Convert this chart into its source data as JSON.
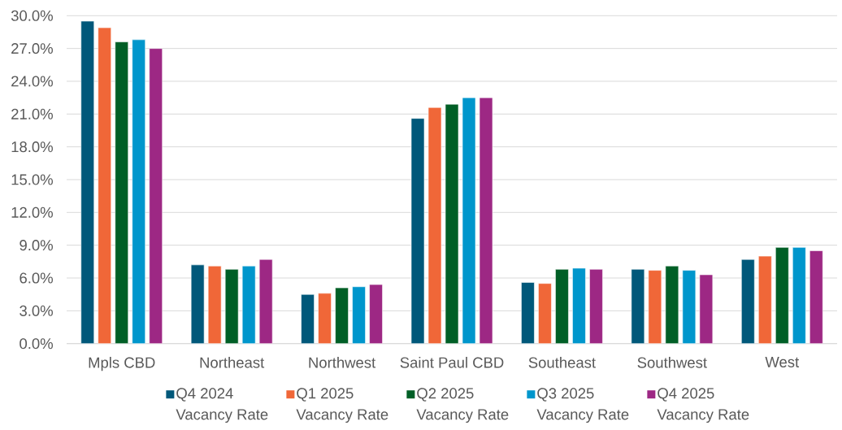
{
  "chart_data": {
    "type": "bar",
    "categories": [
      "Mpls CBD",
      "Northeast",
      "Northwest",
      "Saint Paul CBD",
      "Southeast",
      "Southwest",
      "West"
    ],
    "series": [
      {
        "name": "Q4 2024 Vacancy Rate",
        "color": "#01587A",
        "values": [
          29.5,
          7.2,
          4.5,
          20.6,
          5.6,
          6.8,
          7.7
        ]
      },
      {
        "name": "Q1 2025 Vacancy Rate",
        "color": "#F06738",
        "values": [
          28.9,
          7.1,
          4.6,
          21.6,
          5.5,
          6.7,
          8.0
        ]
      },
      {
        "name": "Q2 2025 Vacancy Rate",
        "color": "#005F26",
        "values": [
          27.6,
          6.8,
          5.1,
          21.9,
          6.8,
          7.1,
          8.8
        ]
      },
      {
        "name": "Q3 2025 Vacancy Rate",
        "color": "#0096CC",
        "values": [
          27.8,
          7.1,
          5.2,
          22.5,
          6.9,
          6.7,
          8.8
        ]
      },
      {
        "name": "Q4 2025 Vacancy Rate",
        "color": "#9D2884",
        "values": [
          27.0,
          7.7,
          5.4,
          22.5,
          6.8,
          6.3,
          8.5
        ]
      }
    ],
    "ylim": [
      0,
      30
    ],
    "yticks": [
      {
        "value": 0,
        "label": "0.0%"
      },
      {
        "value": 3,
        "label": "3.0%"
      },
      {
        "value": 6,
        "label": "6.0%"
      },
      {
        "value": 9,
        "label": "9.0%"
      },
      {
        "value": 12,
        "label": "12.0%"
      },
      {
        "value": 15,
        "label": "15.0%"
      },
      {
        "value": 18,
        "label": "18.0%"
      },
      {
        "value": 21,
        "label": "21.0%"
      },
      {
        "value": 24,
        "label": "24.0%"
      },
      {
        "value": 27,
        "label": "27.0%"
      },
      {
        "value": 30,
        "label": "30.0%"
      }
    ],
    "grid": "y",
    "legend": "bottom"
  }
}
